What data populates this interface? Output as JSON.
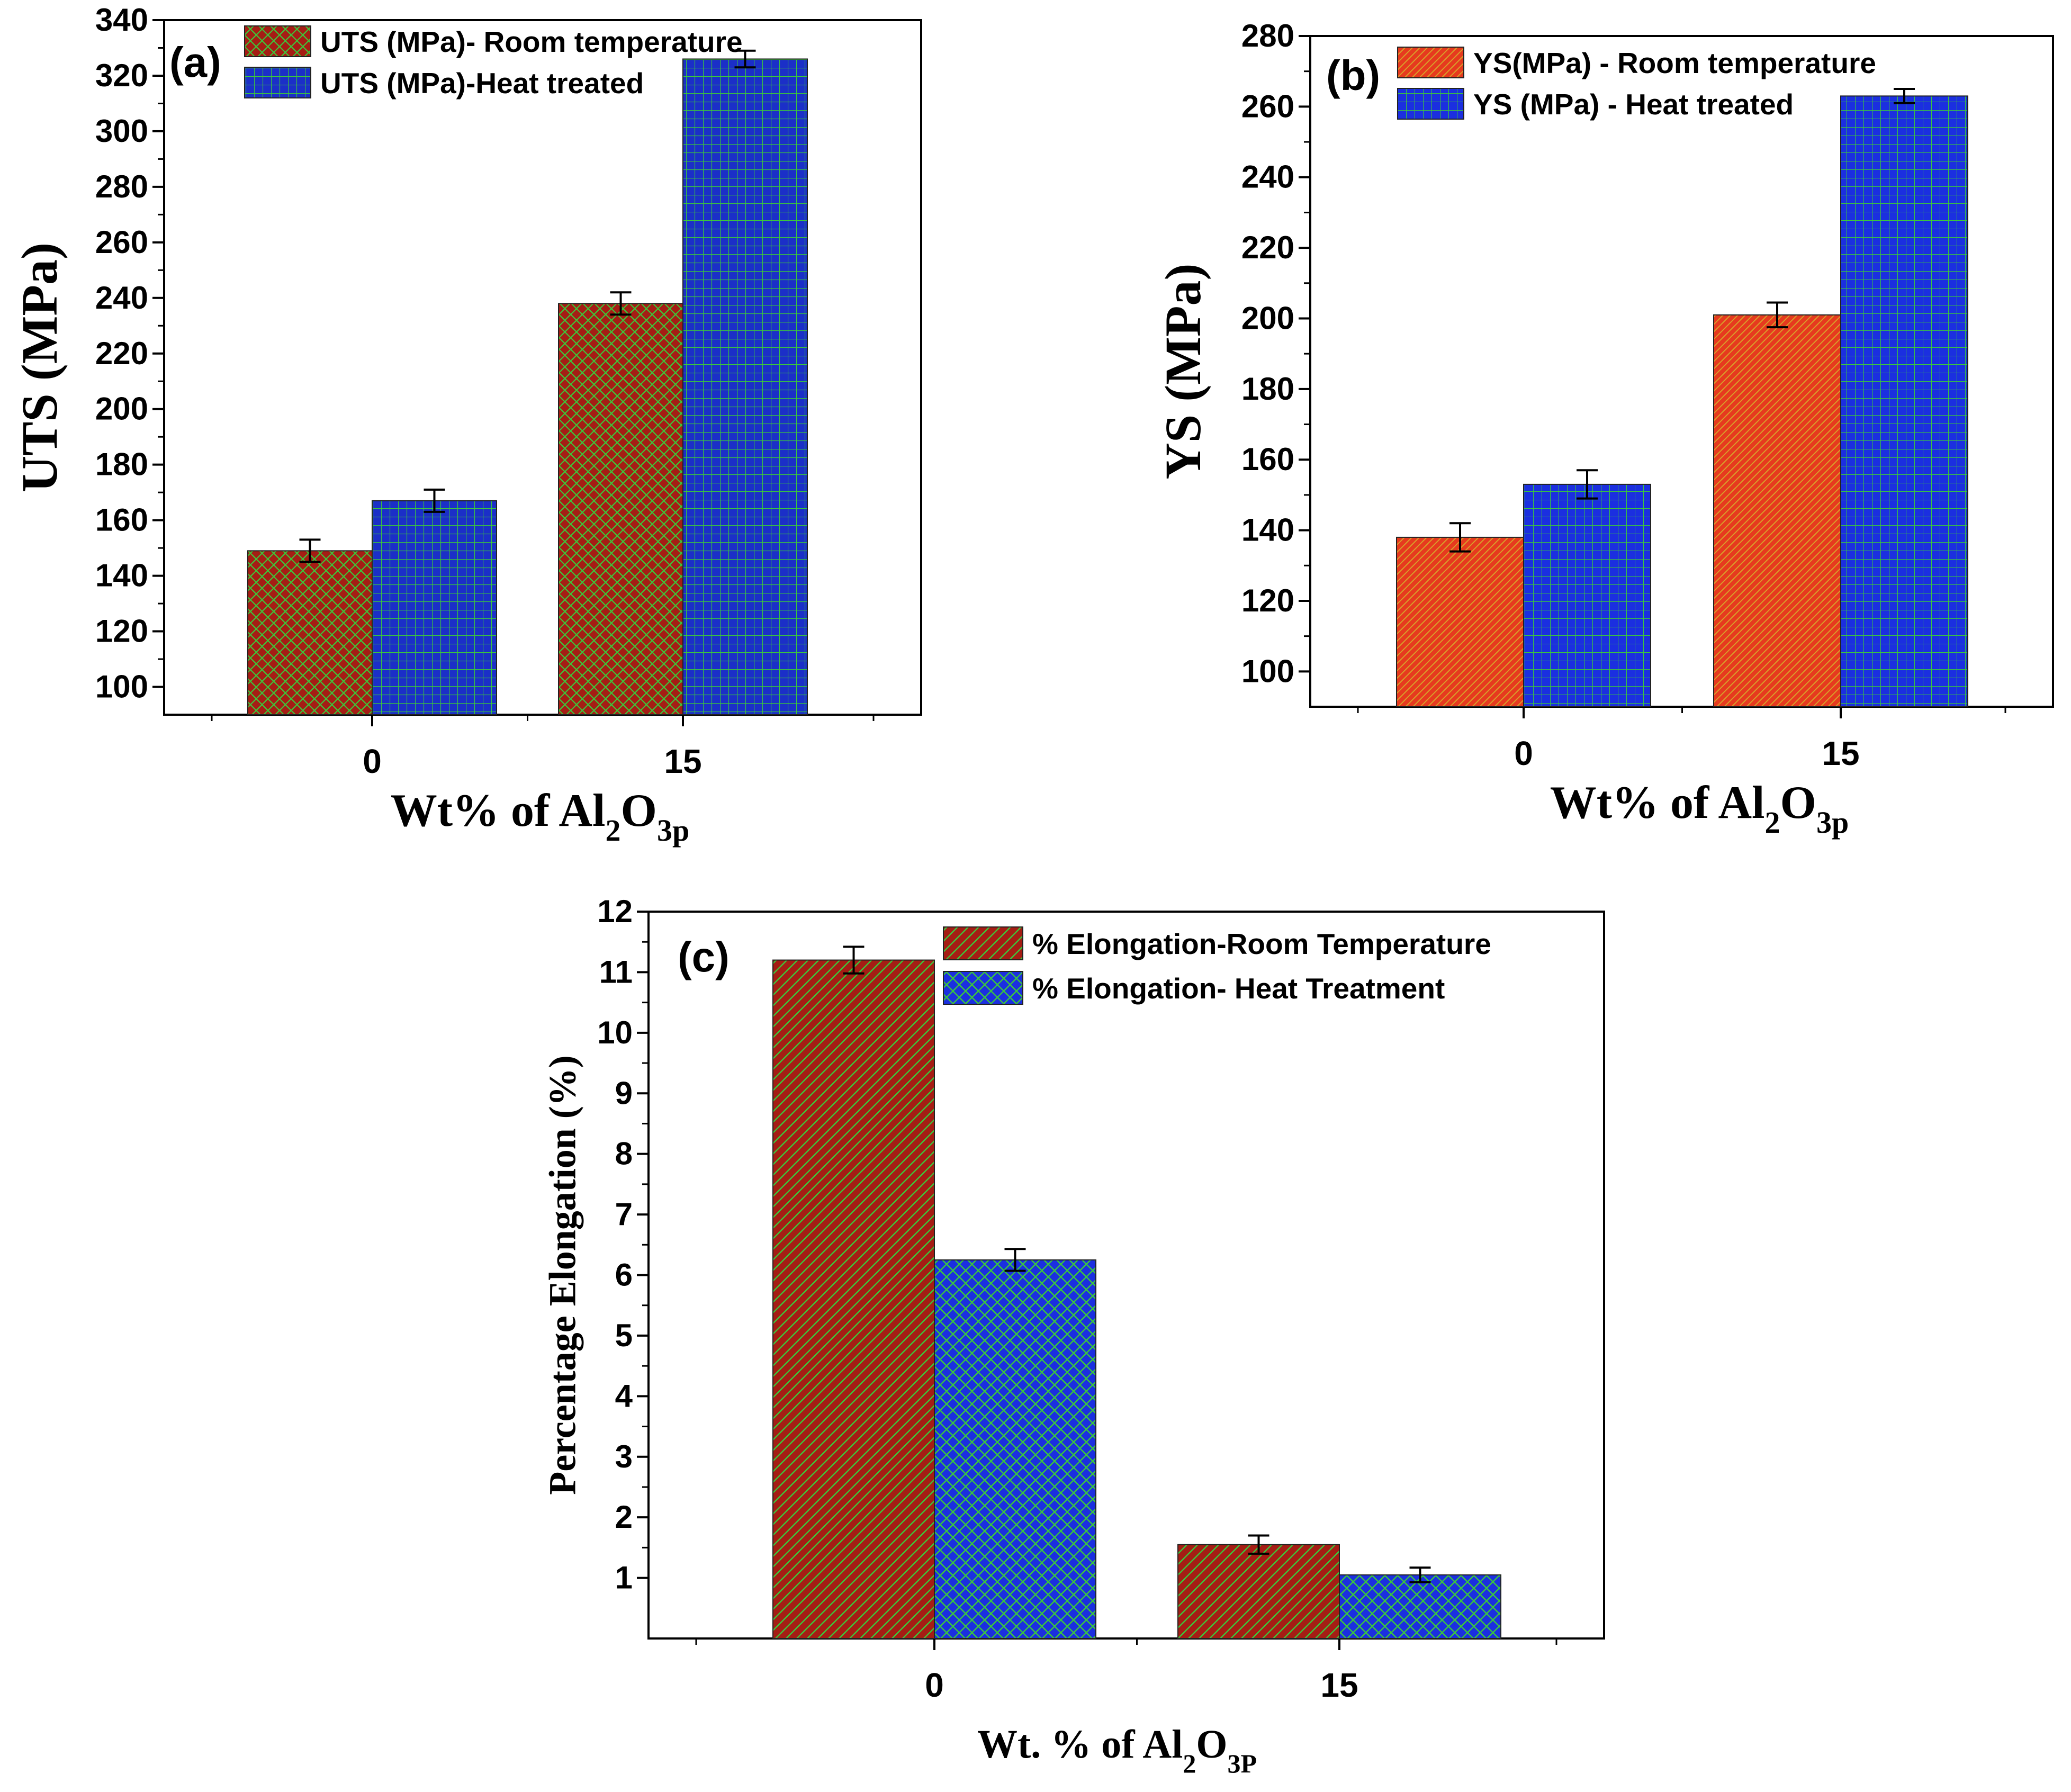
{
  "chart_data": [
    {
      "type": "bar",
      "panel_label": "(a)",
      "categories": [
        "0",
        "15"
      ],
      "series": [
        {
          "name": "UTS (MPa)- Room temperature",
          "values": [
            149,
            238
          ],
          "errors": [
            4,
            4
          ],
          "color": "#a51d14",
          "pattern_color": "#3bc83b",
          "pattern": "crosshatch"
        },
        {
          "name": "UTS (MPa)-Heat treated",
          "values": [
            167,
            326
          ],
          "errors": [
            4,
            3
          ],
          "color": "#1b2fc8",
          "pattern_color": "#3bc83b",
          "pattern": "grid"
        }
      ],
      "ylabel": "UTS (MPa)",
      "xlabel": {
        "main": "Wt% of Al",
        "sub1": "2",
        "mid": "O",
        "sub2": "3p"
      },
      "ylim": [
        90,
        340
      ],
      "yticks": [
        "100",
        "120",
        "140",
        "160",
        "180",
        "200",
        "220",
        "240",
        "260",
        "280",
        "300",
        "320",
        "340"
      ],
      "legend_position": "top-left"
    },
    {
      "type": "bar",
      "panel_label": "(b)",
      "categories": [
        "0",
        "15"
      ],
      "series": [
        {
          "name": "YS(MPa) - Room temperature",
          "values": [
            138,
            201
          ],
          "errors": [
            4,
            3.5
          ],
          "color": "#e63a1e",
          "pattern_color": "#d8a12a",
          "pattern": "diagonal"
        },
        {
          "name": "YS (MPa) - Heat treated",
          "values": [
            153,
            263
          ],
          "errors": [
            4,
            2
          ],
          "color": "#1b2fe0",
          "pattern_color": "#3bc83b",
          "pattern": "grid"
        }
      ],
      "ylabel": "YS (MPa)",
      "xlabel": {
        "main": "Wt% of Al",
        "sub1": "2",
        "mid": "O",
        "sub2": "3p"
      },
      "ylim": [
        90,
        280
      ],
      "yticks": [
        "100",
        "120",
        "140",
        "160",
        "180",
        "200",
        "220",
        "240",
        "260",
        "280"
      ],
      "legend_position": "top-left"
    },
    {
      "type": "bar",
      "panel_label": "(c)",
      "categories": [
        "0",
        "15"
      ],
      "series": [
        {
          "name": "% Elongation-Room Temperature",
          "values": [
            11.2,
            1.55
          ],
          "errors": [
            0.22,
            0.15
          ],
          "color": "#a51d14",
          "pattern_color": "#3bc83b",
          "pattern": "diagonal"
        },
        {
          "name": "% Elongation- Heat Treatment",
          "values": [
            6.25,
            1.05
          ],
          "errors": [
            0.18,
            0.12
          ],
          "color": "#1b2fe0",
          "pattern_color": "#3bc83b",
          "pattern": "crosshatch"
        }
      ],
      "ylabel": "Percentage Elongation (%)",
      "xlabel": {
        "main": "Wt. % of Al",
        "sub1": "2",
        "mid": "O",
        "sub2": "3P"
      },
      "ylim": [
        0,
        12
      ],
      "yticks": [
        "1",
        "2",
        "3",
        "4",
        "5",
        "6",
        "7",
        "8",
        "9",
        "10",
        "11",
        "12"
      ],
      "legend_position": "top-left"
    }
  ]
}
